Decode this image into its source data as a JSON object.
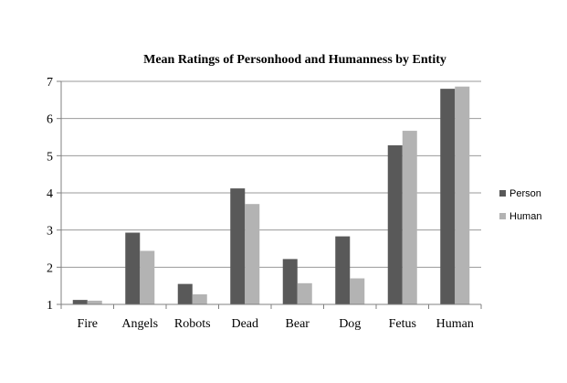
{
  "chart_data": {
    "type": "bar",
    "title": "Mean Ratings of Personhood and Humanness by Entity",
    "xlabel": "",
    "ylabel": "",
    "categories": [
      "Fire",
      "Angels",
      "Robots",
      "Dead",
      "Bear",
      "Dog",
      "Fetus",
      "Human"
    ],
    "series": [
      {
        "name": "Person",
        "color": "#595959",
        "values": [
          1.12,
          2.93,
          1.55,
          4.12,
          2.22,
          2.83,
          5.28,
          6.8
        ]
      },
      {
        "name": "Human",
        "color": "#b3b3b3",
        "values": [
          1.1,
          2.44,
          1.27,
          3.7,
          1.57,
          1.7,
          5.67,
          6.86
        ]
      }
    ],
    "ylim": [
      1,
      7
    ],
    "yticks": [
      "1",
      "2",
      "3",
      "4",
      "5",
      "6",
      "7"
    ],
    "grid": true,
    "legend_position": "right"
  }
}
